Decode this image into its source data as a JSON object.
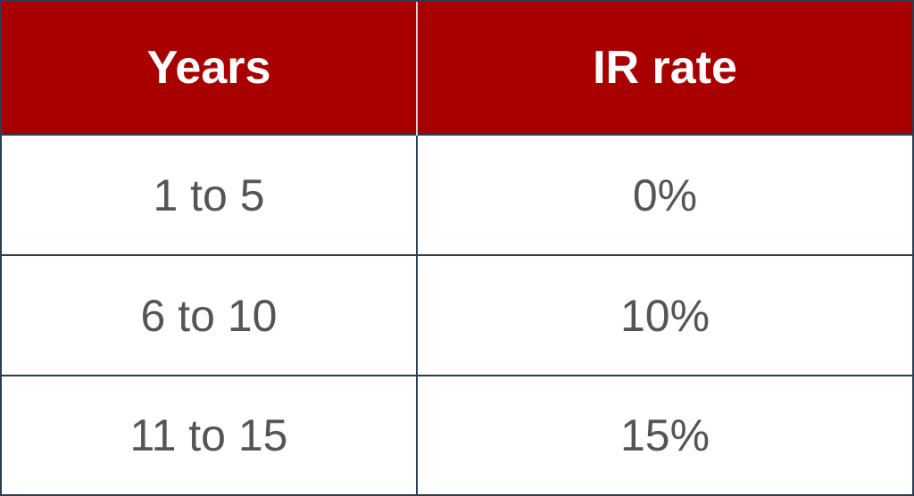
{
  "table": {
    "headers": [
      "Years",
      "IR rate"
    ],
    "rows": [
      [
        "1 to 5",
        "0%"
      ],
      [
        "6 to 10",
        "10%"
      ],
      [
        "11 to 15",
        "15%"
      ]
    ]
  },
  "colors": {
    "header_background": "#a80000",
    "header_text": "#ffffff",
    "cell_text": "#555555",
    "border": "#2c3e50"
  }
}
